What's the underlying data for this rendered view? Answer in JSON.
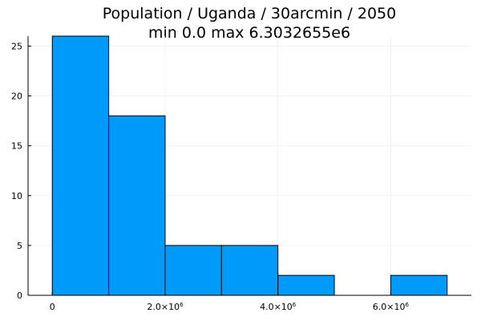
{
  "chart_data": {
    "type": "bar",
    "histogram": true,
    "title": "Population / Uganda / 30arcmin / 2050",
    "subtitle": "min 0.0  max 6.3032655e6",
    "xlabel": "",
    "ylabel": "",
    "bins": [
      {
        "x0": 0,
        "x1": 1000000,
        "count": 26
      },
      {
        "x0": 1000000,
        "x1": 2000000,
        "count": 18
      },
      {
        "x0": 2000000,
        "x1": 3000000,
        "count": 5
      },
      {
        "x0": 3000000,
        "x1": 4000000,
        "count": 5
      },
      {
        "x0": 4000000,
        "x1": 5000000,
        "count": 2
      },
      {
        "x0": 5000000,
        "x1": 6000000,
        "count": 0
      },
      {
        "x0": 6000000,
        "x1": 7000000,
        "count": 2
      }
    ],
    "xlim": [
      -430000,
      7430000
    ],
    "ylim": [
      0,
      26
    ],
    "x_ticks": [
      {
        "value": 0,
        "base": "0",
        "exp": ""
      },
      {
        "value": 2000000,
        "base": "2.0×10",
        "exp": "6"
      },
      {
        "value": 4000000,
        "base": "4.0×10",
        "exp": "6"
      },
      {
        "value": 6000000,
        "base": "6.0×10",
        "exp": "6"
      }
    ],
    "y_ticks": [
      0,
      5,
      10,
      15,
      20,
      25
    ],
    "grid": true,
    "legend": "none",
    "colors": {
      "bar_fill": "#009AFA",
      "bar_stroke": "#000000",
      "grid": "#EBEBEB",
      "axis": "#000000"
    }
  }
}
